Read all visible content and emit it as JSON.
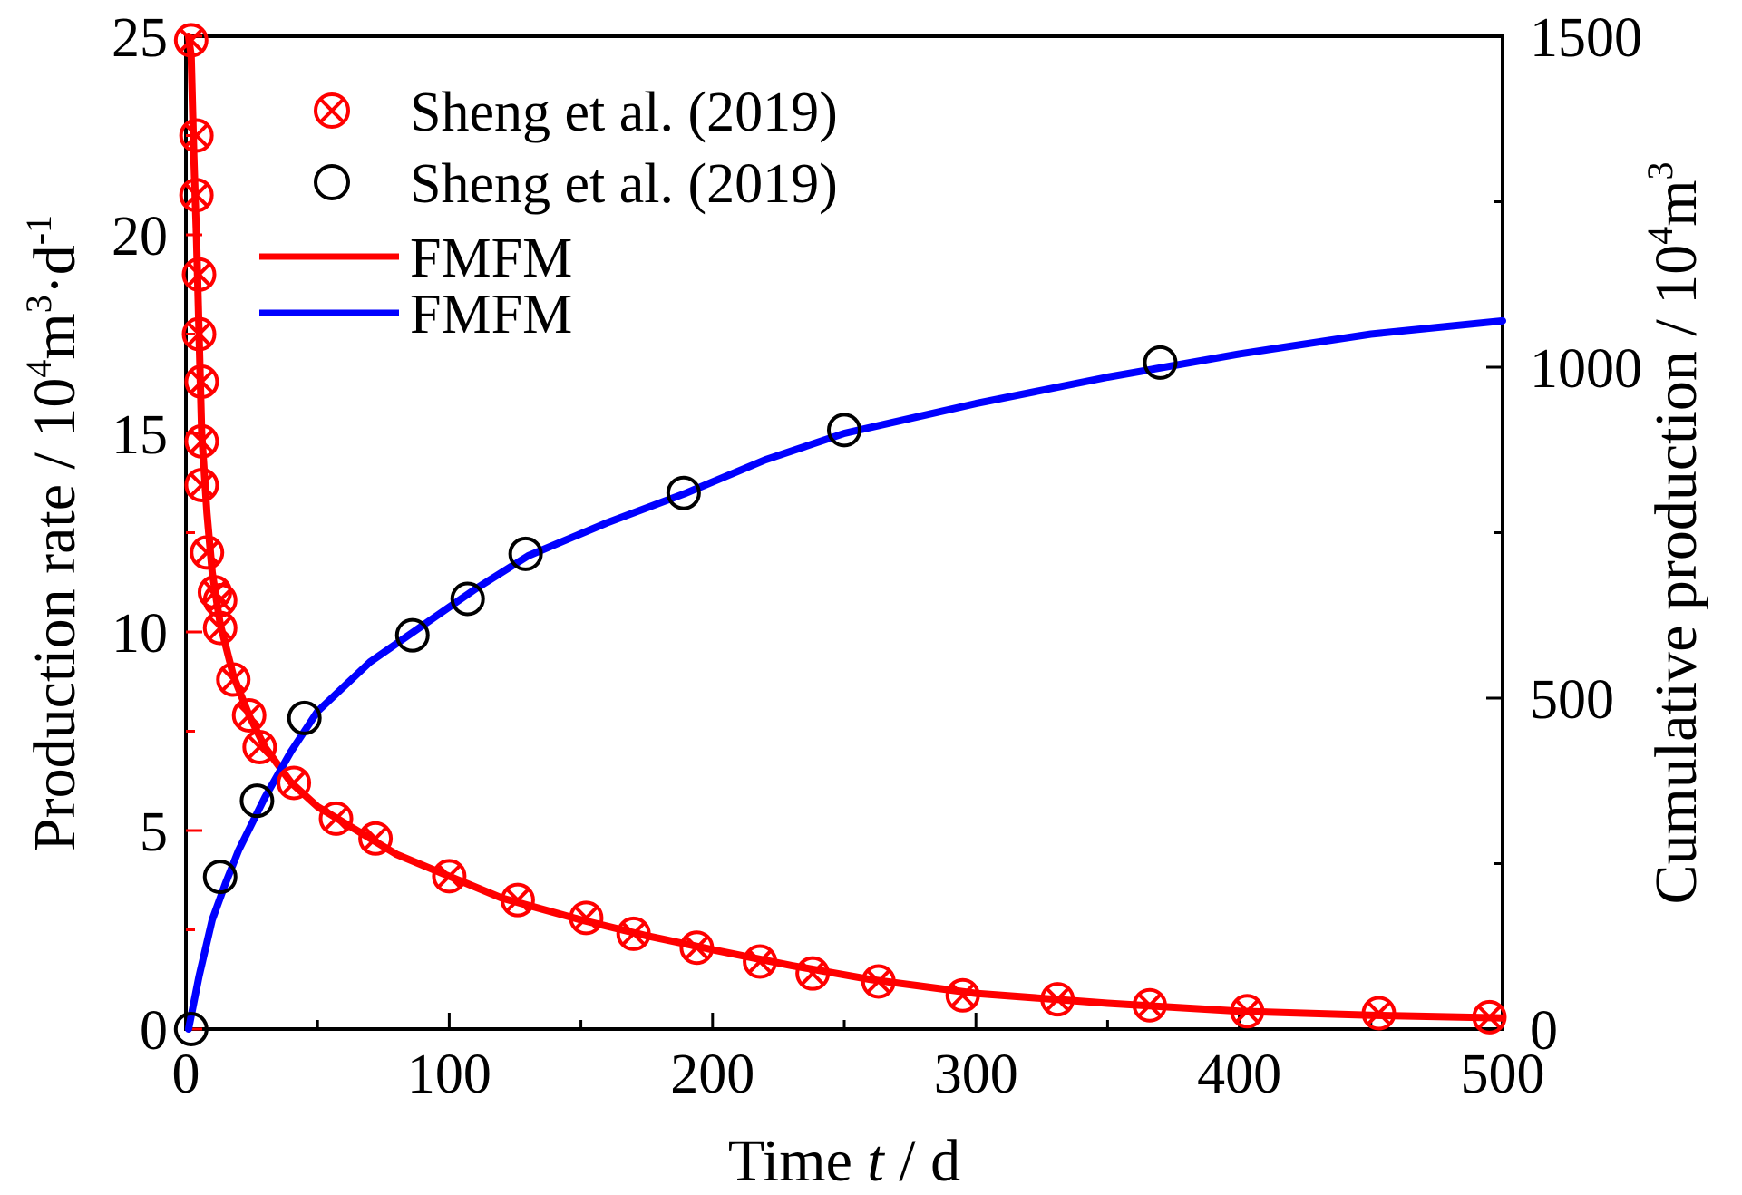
{
  "colors": {
    "red": "#ff0000",
    "blue": "#0000ff",
    "black": "#000000"
  },
  "chart_data": {
    "type": "line",
    "x_axis": {
      "label_prefix": "Time ",
      "label_var": "t",
      "label_suffix": " / d",
      "lim": [
        0,
        500
      ],
      "ticks": [
        0,
        100,
        200,
        300,
        400,
        500
      ]
    },
    "y_left": {
      "label_prefix": "Production rate / 10",
      "label_sup1": "4",
      "label_mid": "m",
      "label_sup2": "3",
      "label_mid2": "·d",
      "label_sup3": "-1",
      "lim": [
        0,
        25
      ],
      "ticks": [
        0,
        5,
        10,
        15,
        20,
        25
      ]
    },
    "y_right": {
      "label_prefix": "Cumulative production / 10",
      "label_sup1": "4",
      "label_mid": "m",
      "label_sup2": "3",
      "lim": [
        0,
        1500
      ],
      "ticks": [
        0,
        500,
        1000,
        1500
      ]
    },
    "legend": {
      "position": "top-left",
      "entries": [
        {
          "label": "Sheng et al. (2019)",
          "kind": "marker-x-circle",
          "color": "#ff0000"
        },
        {
          "label": "Sheng et al. (2019)",
          "kind": "marker-circle",
          "color": "#000000"
        },
        {
          "label": "FMFM",
          "kind": "line",
          "color": "#ff0000"
        },
        {
          "label": "FMFM",
          "kind": "line",
          "color": "#0000ff"
        }
      ]
    },
    "series": [
      {
        "name": "Sheng et al. (2019)",
        "axis": "left",
        "kind": "marker-x-circle",
        "color": "#ff0000",
        "points": [
          [
            2,
            24.9
          ],
          [
            4,
            22.5
          ],
          [
            4,
            21.0
          ],
          [
            5,
            19.0
          ],
          [
            5,
            17.5
          ],
          [
            6,
            16.3
          ],
          [
            6,
            14.8
          ],
          [
            6,
            13.7
          ],
          [
            8,
            12.0
          ],
          [
            11,
            11.0
          ],
          [
            13,
            10.8
          ],
          [
            13,
            10.1
          ],
          [
            18,
            8.8
          ],
          [
            24,
            7.9
          ],
          [
            28,
            7.1
          ],
          [
            41,
            6.2
          ],
          [
            57,
            5.3
          ],
          [
            72,
            4.8
          ],
          [
            100,
            3.85
          ],
          [
            126,
            3.25
          ],
          [
            152,
            2.8
          ],
          [
            170,
            2.4
          ],
          [
            194,
            2.05
          ],
          [
            218,
            1.7
          ],
          [
            238,
            1.4
          ],
          [
            263,
            1.2
          ],
          [
            295,
            0.85
          ],
          [
            331,
            0.75
          ],
          [
            366,
            0.6
          ],
          [
            403,
            0.45
          ],
          [
            453,
            0.4
          ],
          [
            495,
            0.3
          ]
        ]
      },
      {
        "name": "Sheng et al. (2019)",
        "axis": "right",
        "kind": "marker-circle",
        "color": "#000000",
        "points": [
          [
            2,
            0
          ],
          [
            13,
            230
          ],
          [
            27,
            345
          ],
          [
            45,
            470
          ],
          [
            86,
            595
          ],
          [
            107,
            650
          ],
          [
            129,
            718
          ],
          [
            189,
            810
          ],
          [
            250,
            905
          ],
          [
            370,
            1007
          ]
        ]
      },
      {
        "name": "FMFM",
        "axis": "left",
        "kind": "line",
        "color": "#ff0000",
        "points": [
          [
            1,
            25
          ],
          [
            2,
            24.5
          ],
          [
            3,
            22.0
          ],
          [
            4,
            20.0
          ],
          [
            5,
            17.5
          ],
          [
            6,
            15.0
          ],
          [
            8,
            13.0
          ],
          [
            10,
            11.5
          ],
          [
            13,
            10.2
          ],
          [
            18,
            8.9
          ],
          [
            24,
            7.9
          ],
          [
            30,
            7.1
          ],
          [
            40,
            6.2
          ],
          [
            50,
            5.6
          ],
          [
            60,
            5.2
          ],
          [
            80,
            4.4
          ],
          [
            100,
            3.85
          ],
          [
            120,
            3.3
          ],
          [
            150,
            2.75
          ],
          [
            175,
            2.35
          ],
          [
            200,
            2.0
          ],
          [
            230,
            1.6
          ],
          [
            260,
            1.25
          ],
          [
            300,
            0.9
          ],
          [
            350,
            0.65
          ],
          [
            400,
            0.45
          ],
          [
            450,
            0.35
          ],
          [
            500,
            0.28
          ]
        ]
      },
      {
        "name": "FMFM",
        "axis": "right",
        "kind": "line",
        "color": "#0000ff",
        "points": [
          [
            1,
            0
          ],
          [
            5,
            80
          ],
          [
            10,
            165
          ],
          [
            15,
            220
          ],
          [
            20,
            270
          ],
          [
            30,
            350
          ],
          [
            40,
            420
          ],
          [
            50,
            480
          ],
          [
            70,
            555
          ],
          [
            90,
            610
          ],
          [
            110,
            665
          ],
          [
            130,
            715
          ],
          [
            160,
            765
          ],
          [
            190,
            810
          ],
          [
            220,
            860
          ],
          [
            250,
            900
          ],
          [
            300,
            945
          ],
          [
            350,
            985
          ],
          [
            400,
            1020
          ],
          [
            450,
            1050
          ],
          [
            500,
            1070
          ]
        ]
      }
    ]
  }
}
